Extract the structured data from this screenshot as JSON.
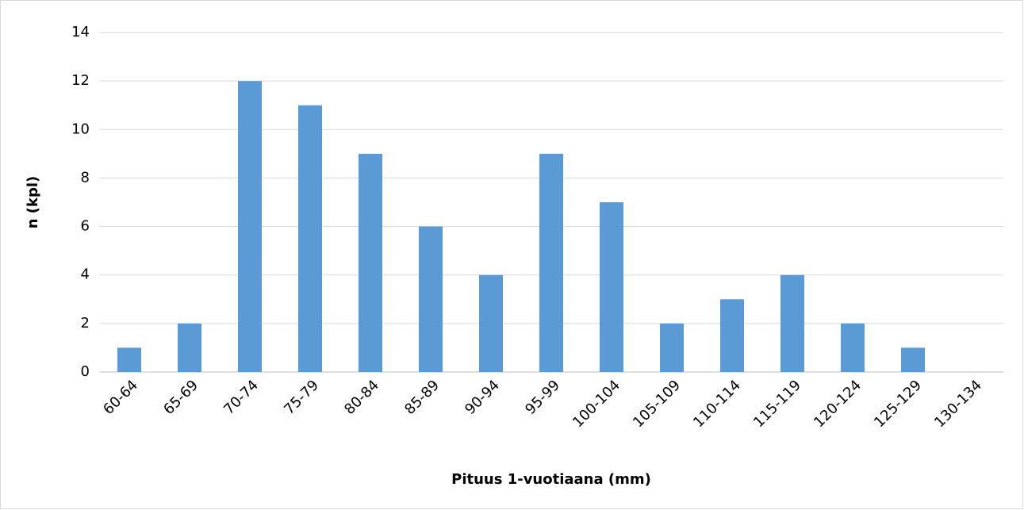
{
  "chart_data": {
    "type": "bar",
    "x_label": "Pituus 1-vuotiaana (mm)",
    "y_label": "n (kpl)",
    "categories": [
      "60-64",
      "65-69",
      "70-74",
      "75-79",
      "80-84",
      "85-89",
      "90-94",
      "95-99",
      "100-104",
      "105-109",
      "110-114",
      "115-119",
      "120-124",
      "125-129",
      "130-134"
    ],
    "values": [
      1,
      2,
      12,
      11,
      9,
      6,
      4,
      9,
      7,
      2,
      3,
      4,
      2,
      1,
      0
    ],
    "color": "#5b9bd5",
    "ylim": [
      0,
      14
    ],
    "yticks": [
      0,
      2,
      4,
      6,
      8,
      10,
      12,
      14
    ],
    "grid": true
  }
}
